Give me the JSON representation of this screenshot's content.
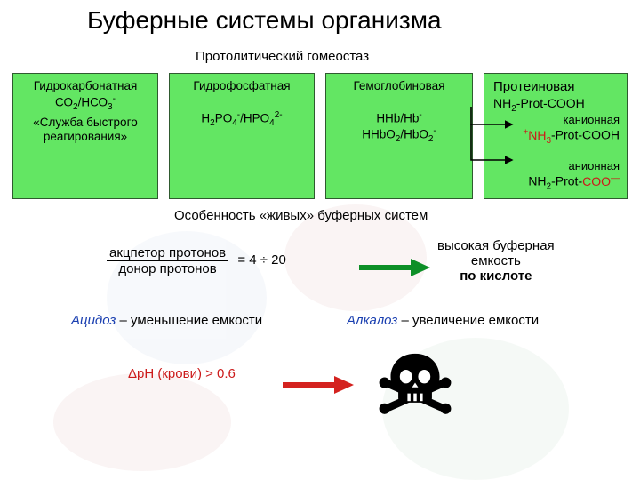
{
  "colors": {
    "box_fill": "#63e663",
    "box_border": "#2f5a2f",
    "arrow_green": "#0d8f27",
    "arrow_red": "#d4221f",
    "text_red": "#cc1a1a",
    "text_blue": "#1a3fb0",
    "bg_blob1": "#c9d7ea",
    "bg_blob2": "#e0b7b7",
    "bg_blob3": "#b9d9c2"
  },
  "title": "Буферные системы организма",
  "subtitle": "Протолитический гомеостаз",
  "boxes": {
    "bicarb": {
      "name": "Гидрокарбонатная",
      "formula_html": "СО<span class='sub'>2</span>/НСО<span class='sub'>3</span><span class='sup'>-</span>",
      "note": "«Служба быстрого реагирования»"
    },
    "phos": {
      "name": "Гидрофосфатная",
      "formula_html": "H<span class='sub'>2</span>PO<span class='sub'>4</span><span class='sup'>-</span>/HPO<span class='sub'>4</span><span class='sup'>2-</span>"
    },
    "hemo": {
      "name": "Гемоглобиновая",
      "formula1_html": "HHb/Hb<span class='sup'>-</span>",
      "formula2_html": "HHbO<span class='sub'>2</span>/HbO<span class='sub'>2</span><span class='sup'>-</span>"
    },
    "prot": {
      "name": "Протеиновая",
      "base_html": "NH<span class='sub'>2</span>-Prot-COOH",
      "cat_label": "канионная",
      "cat_html": "<span class='red'><span class='sup'>+</span>NH<span class='sub'>3</span></span>-Prot-COOH",
      "an_label": "анионная",
      "an_html": "NH<span class='sub'>2</span>-Prot-<span class='red'>COO<span class='sup'>—</span></span>"
    }
  },
  "feature": "Особенность «живых» буферных систем",
  "ratio": {
    "num": "акцпетор протонов",
    "den": "донор протонов",
    "rhs": "= 4 ÷ 20"
  },
  "highcap": {
    "l1": "высокая буферная",
    "l2": "емкость",
    "l3": "по кислоте"
  },
  "acidosis": {
    "term": "Ацидоз",
    "rest": " – уменьшение емкости"
  },
  "alkalosis": {
    "term": "Алкалоз",
    "rest": " – увеличение емкости"
  },
  "dph": "ΔрН (крови) > 0.6"
}
